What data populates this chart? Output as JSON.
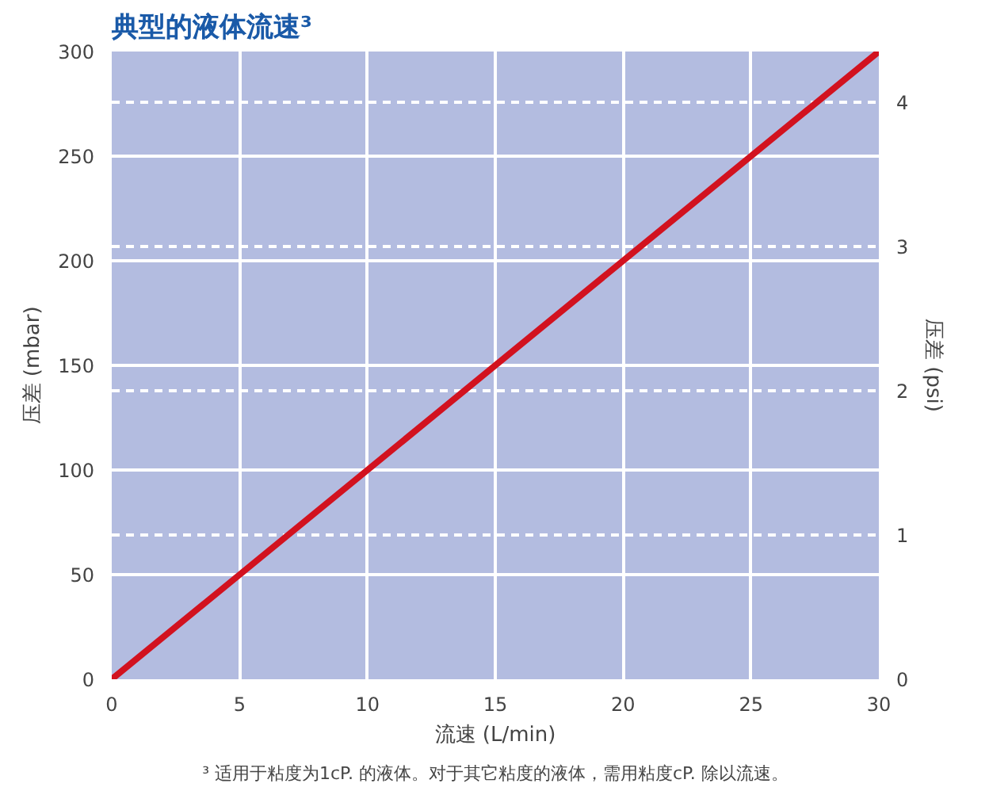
{
  "chart_data": {
    "type": "line",
    "title": "典型的液体流速³",
    "xlabel": "流速 (L/min)",
    "ylabel": "压差 (mbar)",
    "y2label": "压差 (psi)",
    "annotations": [
      "³ 适用于粘度为1cP. 的液体。对于其它粘度的液体，需用粘度cP. 除以流速。"
    ],
    "x": [
      0,
      30
    ],
    "series": [
      {
        "color": "#d2121f",
        "values": [
          0,
          300
        ]
      }
    ],
    "xlim": [
      0,
      30
    ],
    "xticks": [
      0,
      5,
      10,
      15,
      20,
      25,
      30
    ],
    "ylim": [
      0,
      300
    ],
    "yticks": [
      0,
      50,
      100,
      150,
      200,
      250,
      300
    ],
    "y2lim": [
      0,
      4.35
    ],
    "y2ticks": [
      0,
      1,
      2,
      3,
      4
    ],
    "grid": true,
    "marker": "none",
    "line_style": "solid"
  }
}
